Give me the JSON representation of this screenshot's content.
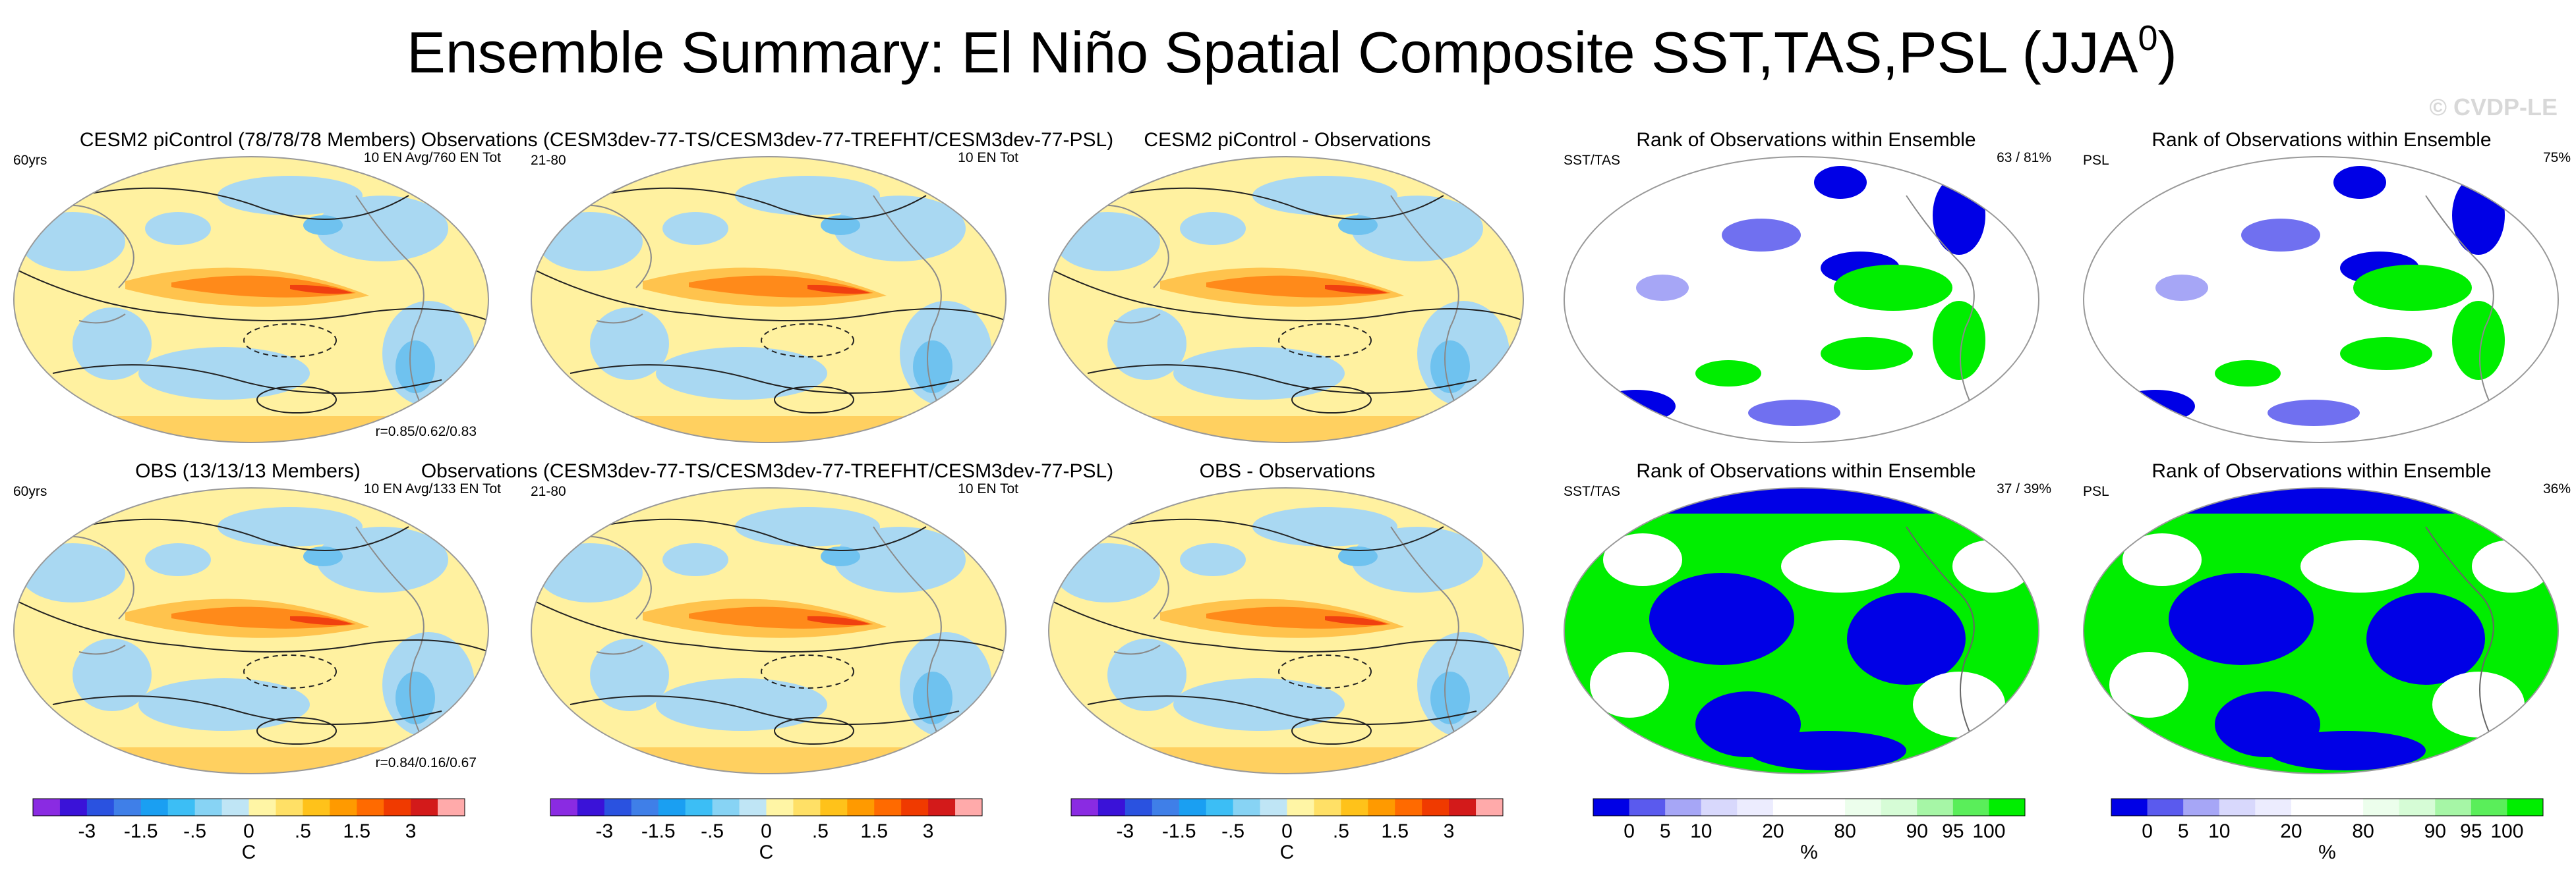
{
  "header": {
    "title": "Ensemble Summary: El Niño Spatial Composite SST,TAS,PSL (JJA",
    "title_superscript": "0",
    "title_end": ")",
    "watermark": "© CVDP-LE"
  },
  "panels": [
    {
      "title": "CESM2 piControl (78/78/78 Members)",
      "title_color": "#1c6f8c",
      "left_label": "60yrs",
      "right_label": "10 EN Avg/760 EN Tot",
      "corner_label": "r=0.85/0.62/0.83"
    },
    {
      "title": "Observations (CESM3dev-77-TS/CESM3dev-77-TREFHT/CESM3dev-77-PSL)",
      "left_label": "21-80",
      "right_label": "10 EN Tot"
    },
    {
      "title": "CESM2 piControl - Observations"
    },
    {
      "title": "Rank of Observations within Ensemble",
      "left_label": "SST/TAS",
      "right_label": "63 /  81%"
    },
    {
      "title": "Rank of Observations within Ensemble",
      "left_label": "PSL",
      "right_label": "75%"
    },
    {
      "title": "OBS (13/13/13 Members)",
      "title_color": "#4e8c4e",
      "left_label": "60yrs",
      "right_label": "10 EN Avg/133 EN Tot",
      "corner_label": "r=0.84/0.16/0.67"
    },
    {
      "title": "Observations (CESM3dev-77-TS/CESM3dev-77-TREFHT/CESM3dev-77-PSL)",
      "left_label": "21-80",
      "right_label": "10 EN Tot"
    },
    {
      "title": "OBS - Observations"
    },
    {
      "title": "Rank of Observations within Ensemble",
      "left_label": "SST/TAS",
      "right_label": "37 /  39%"
    },
    {
      "title": "Rank of Observations within Ensemble",
      "left_label": "PSL",
      "right_label": "36%"
    }
  ],
  "colorbars": [
    {
      "labels": [
        "-3",
        "-1.5",
        "-.5",
        "0",
        ".5",
        "1.5",
        "3"
      ],
      "unit": "C",
      "colors": [
        "#8a2be2",
        "#3a12d8",
        "#2a52e0",
        "#3f7fe8",
        "#1a9ff2",
        "#3cbef5",
        "#87d3f4",
        "#bfe5f5",
        "#fff5a5",
        "#ffe066",
        "#ffc21a",
        "#ff9a00",
        "#ff6a00",
        "#f03a00",
        "#d31a1a",
        "#ffaaaa"
      ]
    },
    {
      "labels": [
        "-3",
        "-1.5",
        "-.5",
        "0",
        ".5",
        "1.5",
        "3"
      ],
      "unit": "C",
      "colors": [
        "#8a2be2",
        "#3a12d8",
        "#2a52e0",
        "#3f7fe8",
        "#1a9ff2",
        "#3cbef5",
        "#87d3f4",
        "#bfe5f5",
        "#fff5a5",
        "#ffe066",
        "#ffc21a",
        "#ff9a00",
        "#ff6a00",
        "#f03a00",
        "#d31a1a",
        "#ffaaaa"
      ]
    },
    {
      "labels": [
        "-3",
        "-1.5",
        "-.5",
        "0",
        ".5",
        "1.5",
        "3"
      ],
      "unit": "C",
      "colors": [
        "#8a2be2",
        "#3a12d8",
        "#2a52e0",
        "#3f7fe8",
        "#1a9ff2",
        "#3cbef5",
        "#87d3f4",
        "#bfe5f5",
        "#fff5a5",
        "#ffe066",
        "#ffc21a",
        "#ff9a00",
        "#ff6a00",
        "#f03a00",
        "#d31a1a",
        "#ffaaaa"
      ]
    },
    {
      "labels": [
        "0",
        "5",
        "10",
        "20",
        "80",
        "90",
        "95",
        "100"
      ],
      "unit": "%",
      "colors": [
        "#0000e6",
        "#5a5aee",
        "#a6a6f6",
        "#d8d8fc",
        "#ececfe",
        "#ffffff",
        "#ffffff",
        "#ecfeec",
        "#d6fcd6",
        "#a6f6a6",
        "#5aee5a",
        "#00ee00"
      ]
    },
    {
      "labels": [
        "0",
        "5",
        "10",
        "20",
        "80",
        "90",
        "95",
        "100"
      ],
      "unit": "%",
      "colors": [
        "#0000e6",
        "#5a5aee",
        "#a6a6f6",
        "#d8d8fc",
        "#ececfe",
        "#ffffff",
        "#ffffff",
        "#ecfeec",
        "#d6fcd6",
        "#a6f6a6",
        "#5aee5a",
        "#00ee00"
      ]
    }
  ]
}
